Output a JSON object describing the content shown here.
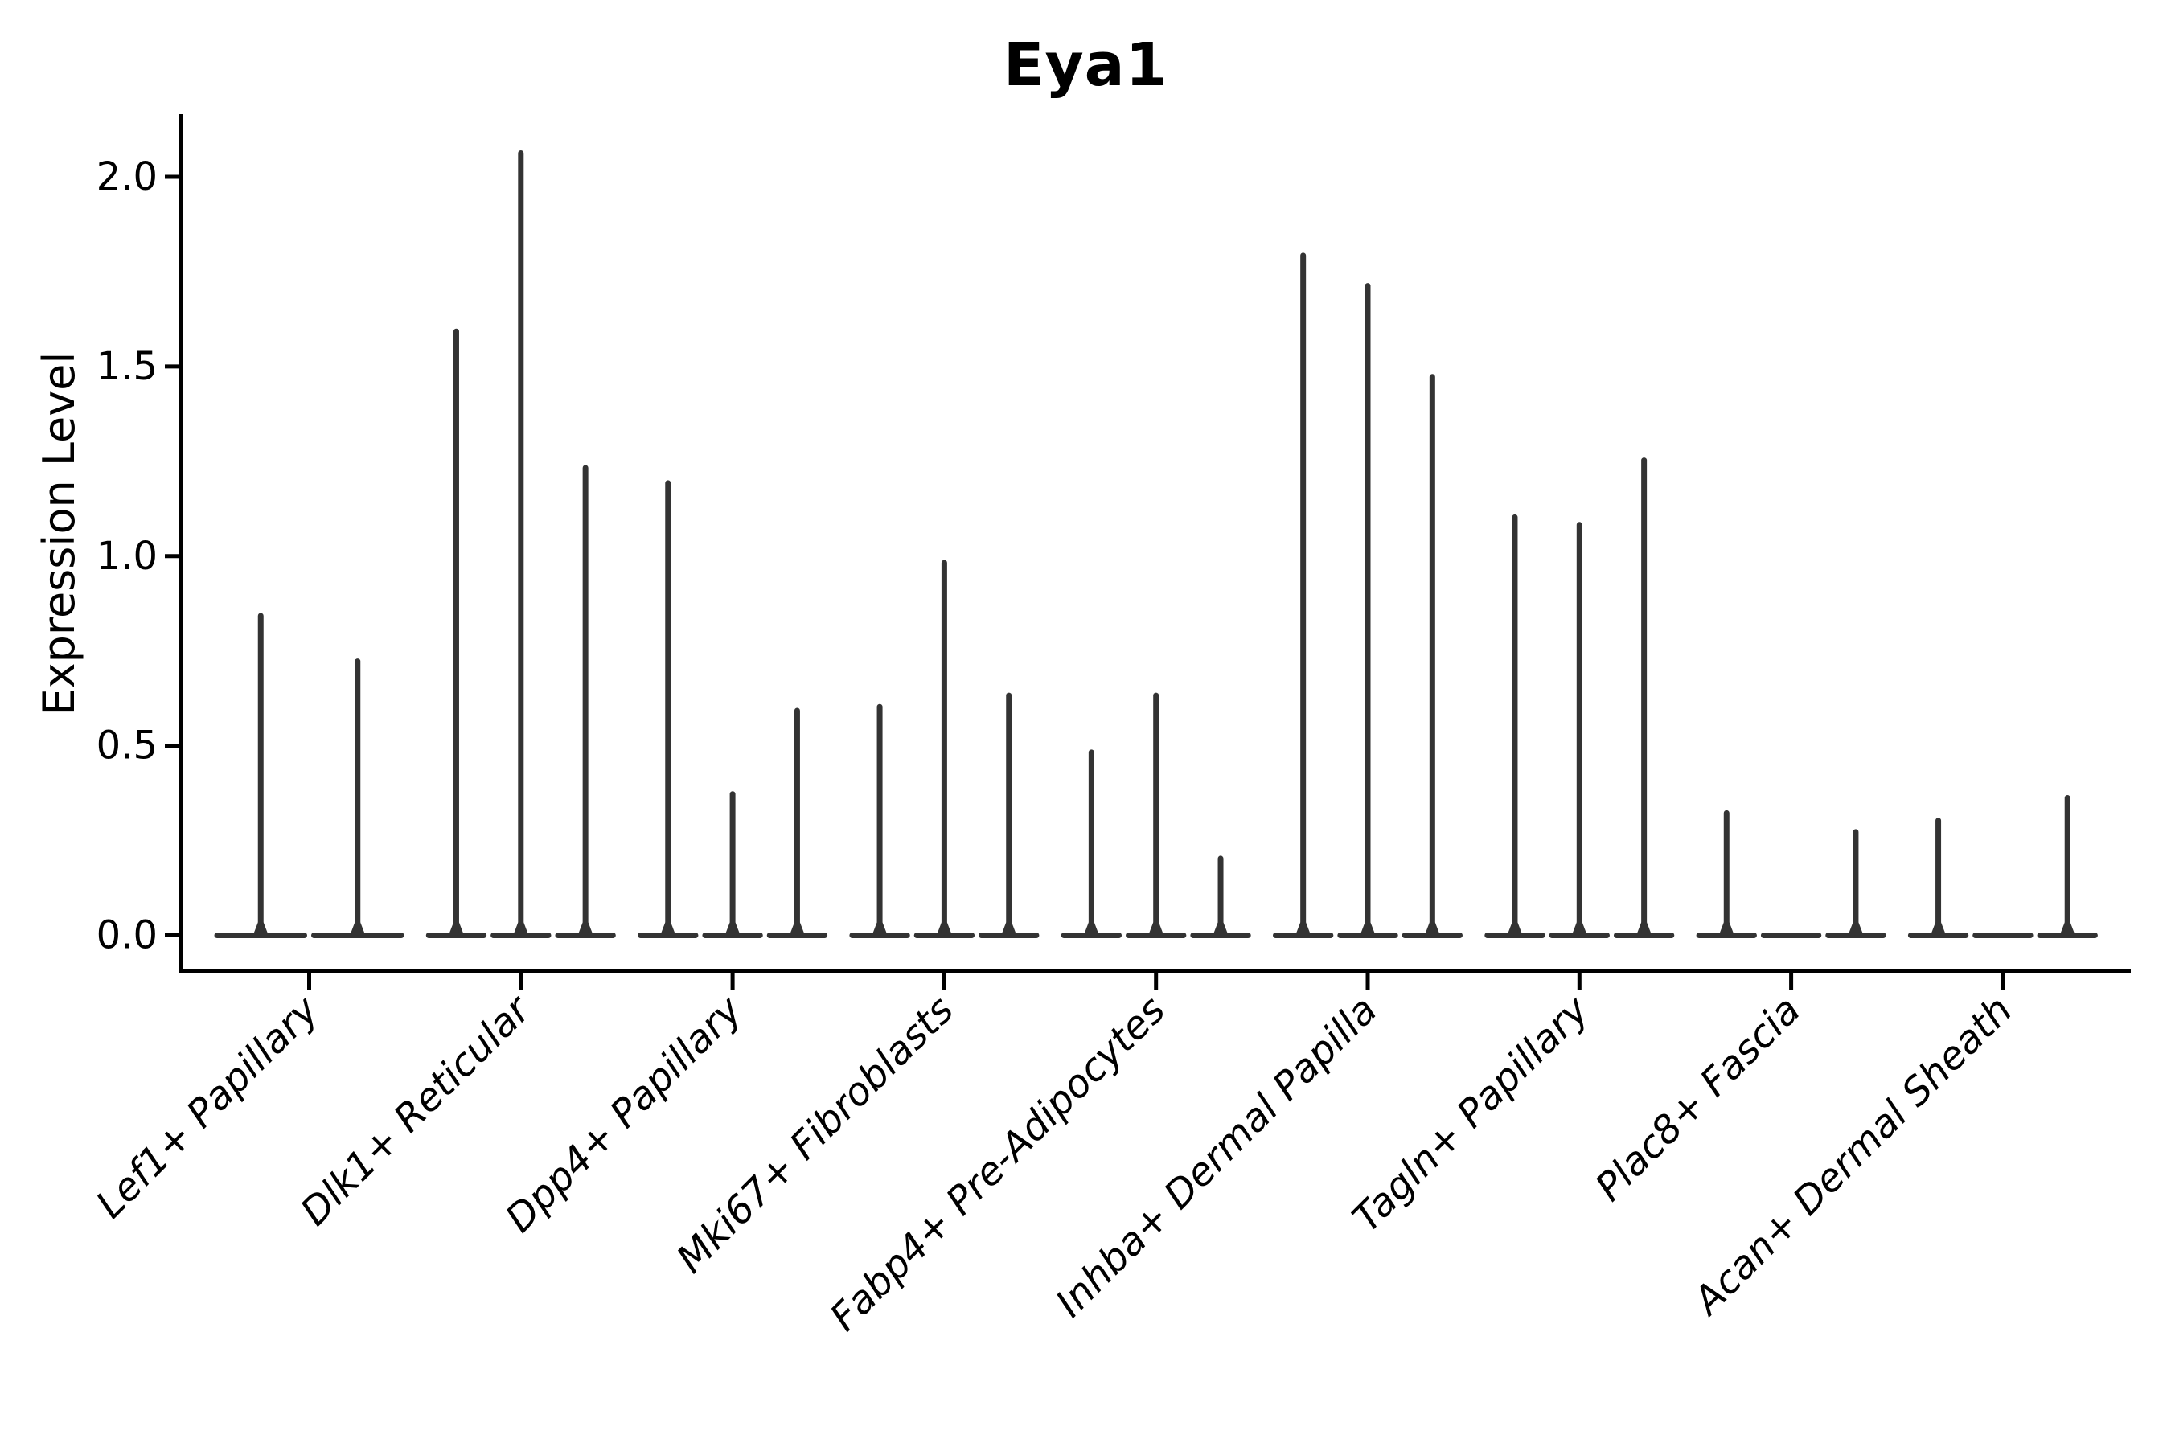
{
  "chart_data": {
    "type": "violin",
    "title": "Eya1",
    "ylabel": "Expression Level",
    "xlabel": "",
    "yticks": [
      0.0,
      0.5,
      1.0,
      1.5,
      2.0
    ],
    "ylim": [
      -0.09,
      2.17
    ],
    "grid": false,
    "legend": false,
    "note": "Collapsed violins: nearly all density at 0 (flat base), thin spikes reach each violin's max expression value",
    "categories": [
      "Lef1+ Papillary",
      "Dlk1+ Reticular",
      "Dpp4+ Papillary",
      "Mki67+ Fibroblasts",
      "Fabp4+ Pre-Adipocytes",
      "Inhba+ Dermal Papilla",
      "Tagln+ Papillary",
      "Plac8+ Fascia",
      "Acan+ Dermal Sheath"
    ],
    "groups": [
      {
        "label": "Lef1+ Papillary",
        "violin_max_values": [
          0.85,
          0.73
        ]
      },
      {
        "label": "Dlk1+ Reticular",
        "violin_max_values": [
          1.6,
          2.07,
          1.24
        ]
      },
      {
        "label": "Dpp4+ Papillary",
        "violin_max_values": [
          1.2,
          0.38,
          0.6
        ]
      },
      {
        "label": "Mki67+ Fibroblasts",
        "violin_max_values": [
          0.61,
          0.99,
          0.64
        ]
      },
      {
        "label": "Fabp4+ Pre-Adipocytes",
        "violin_max_values": [
          0.49,
          0.64,
          0.21
        ]
      },
      {
        "label": "Inhba+ Dermal Papilla",
        "violin_max_values": [
          1.8,
          1.72,
          1.48
        ]
      },
      {
        "label": "Tagln+ Papillary",
        "violin_max_values": [
          1.11,
          1.09,
          1.26
        ]
      },
      {
        "label": "Plac8+ Fascia",
        "violin_max_values": [
          0.33,
          0.0,
          0.28
        ]
      },
      {
        "label": "Acan+ Dermal Sheath",
        "violin_max_values": [
          0.31,
          0.0,
          0.37
        ]
      }
    ],
    "colors": {
      "violin": "#333333",
      "axis": "#000000",
      "text": "#000000",
      "background": "#ffffff"
    }
  }
}
